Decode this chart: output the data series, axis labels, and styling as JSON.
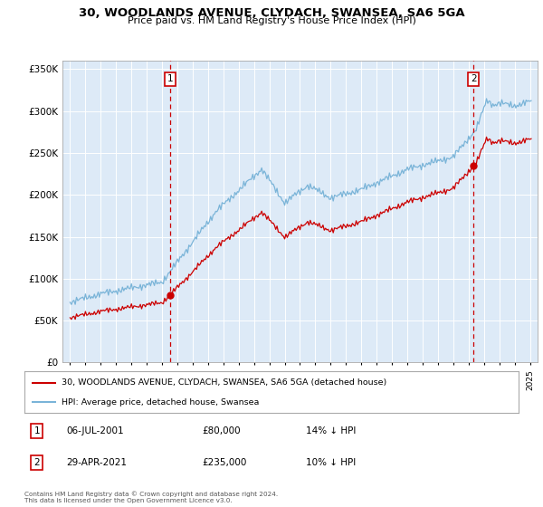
{
  "title1": "30, WOODLANDS AVENUE, CLYDACH, SWANSEA, SA6 5GA",
  "title2": "Price paid vs. HM Land Registry's House Price Index (HPI)",
  "legend_line1": "30, WOODLANDS AVENUE, CLYDACH, SWANSEA, SA6 5GA (detached house)",
  "legend_line2": "HPI: Average price, detached house, Swansea",
  "footnote": "Contains HM Land Registry data © Crown copyright and database right 2024.\nThis data is licensed under the Open Government Licence v3.0.",
  "annotation1_date": "06-JUL-2001",
  "annotation1_price": "£80,000",
  "annotation1_hpi": "14% ↓ HPI",
  "annotation2_date": "29-APR-2021",
  "annotation2_price": "£235,000",
  "annotation2_hpi": "10% ↓ HPI",
  "sale1_x": 2001.51,
  "sale1_y": 80000,
  "sale2_x": 2021.33,
  "sale2_y": 235000,
  "hpi_color": "#7ab4d8",
  "price_color": "#cc0000",
  "vline_color": "#cc0000",
  "background_color": "#ddeaf7",
  "ylim": [
    0,
    360000
  ],
  "xlim": [
    1994.5,
    2025.5
  ],
  "yticks": [
    0,
    50000,
    100000,
    150000,
    200000,
    250000,
    300000,
    350000
  ],
  "xticks": [
    1995,
    1996,
    1997,
    1998,
    1999,
    2000,
    2001,
    2002,
    2003,
    2004,
    2005,
    2006,
    2007,
    2008,
    2009,
    2010,
    2011,
    2012,
    2013,
    2014,
    2015,
    2016,
    2017,
    2018,
    2019,
    2020,
    2021,
    2022,
    2023,
    2024,
    2025
  ]
}
